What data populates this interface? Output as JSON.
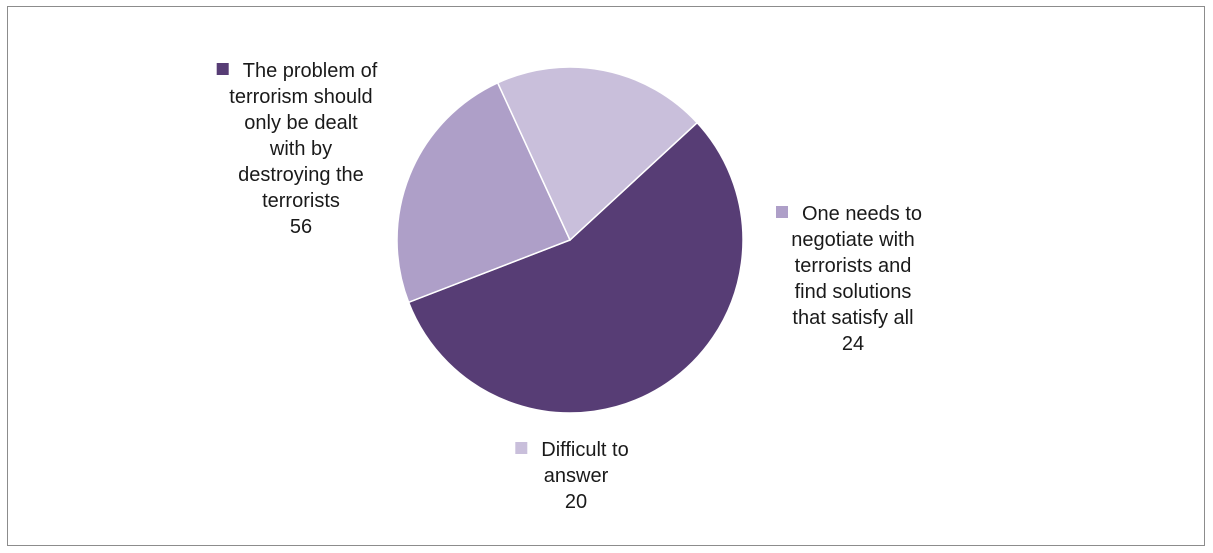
{
  "chart_data": {
    "type": "pie",
    "title": "",
    "slices": [
      {
        "label_lines": [
          "The problem of",
          "terrorism should",
          "only be dealt",
          "with by",
          "destroying the",
          "terrorists"
        ],
        "value": 56,
        "color": "#573d75"
      },
      {
        "label_lines": [
          "One needs to",
          "negotiate with",
          "terrorists and",
          "find solutions",
          "that satisfy all"
        ],
        "value": 24,
        "color": "#ae9fc8"
      },
      {
        "label_lines": [
          "Difficult to",
          "answer"
        ],
        "value": 20,
        "color": "#c9bfdb"
      }
    ],
    "legend": "none",
    "data_labels": "category and value"
  }
}
